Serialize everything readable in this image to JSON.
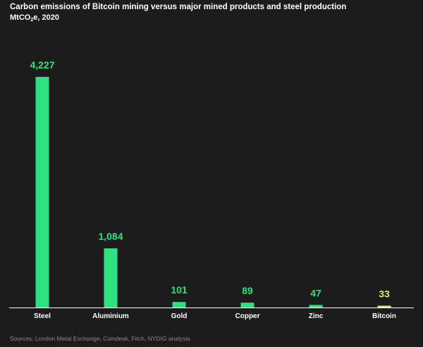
{
  "header": {
    "title": "Carbon emissions of Bitcoin mining versus major mined products and steel production",
    "subtitle_prefix": "MtCO",
    "subtitle_sub": "2",
    "subtitle_suffix": "e, 2020"
  },
  "footer": {
    "source": "Sources: London Metal Exchange, Coindesk, Fitch, NYDIG analysis"
  },
  "colors": {
    "background": "#1c1c1c",
    "bar": "#2ee27f",
    "highlight": "#c9f07a",
    "axis": "#ffffff"
  },
  "chart_data": {
    "type": "bar",
    "title": "Carbon emissions of Bitcoin mining versus major mined products and steel production",
    "subtitle": "MtCO2e, 2020",
    "xlabel": "",
    "ylabel": "",
    "ylim": [
      0,
      4227
    ],
    "grid": false,
    "categories": [
      "Steel",
      "Aluminium",
      "Gold",
      "Copper",
      "Zinc",
      "Bitcoin"
    ],
    "values": [
      4227,
      1084,
      101,
      89,
      47,
      33
    ],
    "value_labels": [
      "4,227",
      "1,084",
      "101",
      "89",
      "47",
      "33"
    ],
    "highlight_category": "Bitcoin"
  }
}
